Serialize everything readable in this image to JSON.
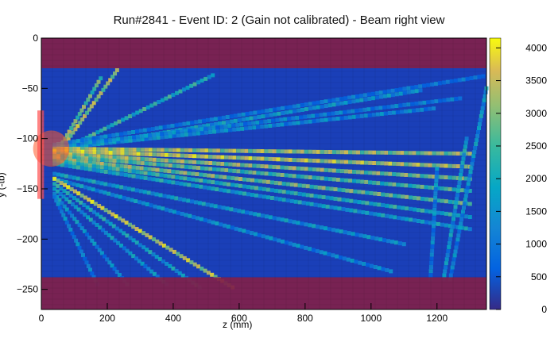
{
  "window": {
    "title": "Run#2841 - Event ID: 2 (Gain not calibrated) - Beam right view"
  },
  "chart_data": {
    "type": "heatmap",
    "title": "Run#2841 - Event ID: 2 (Gain not calibrated) - Beam right view",
    "xlabel": "z (mm)",
    "ylabel": "y (-tb)",
    "xlim": [
      0,
      1350
    ],
    "ylim": [
      -270,
      0
    ],
    "x_ticks": [
      0,
      200,
      400,
      600,
      800,
      1000,
      1200
    ],
    "y_ticks": [
      0,
      -50,
      -100,
      -150,
      -200,
      -250
    ],
    "colorbar": {
      "range": [
        0,
        4150
      ],
      "ticks": [
        0,
        500,
        1000,
        1500,
        2000,
        2500,
        3000,
        3500,
        4000
      ],
      "colormap": "parula"
    },
    "masked_regions": [
      {
        "y_range": [
          -30,
          0
        ],
        "x_range": [
          0,
          1350
        ],
        "color": "#80204a"
      },
      {
        "y_range": [
          -270,
          -238
        ],
        "x_range": [
          0,
          1350
        ],
        "color": "#80204a"
      }
    ],
    "beam_spot": {
      "center": [
        30,
        -110
      ],
      "radius": 55,
      "color": "#ff5a2a"
    },
    "beam_bar": {
      "x_range": [
        -12,
        8
      ],
      "y_range": [
        -160,
        -72
      ],
      "color": "#ff5050"
    },
    "tracks": [
      {
        "from": [
          40,
          -120
        ],
        "to": [
          230,
          -32
        ],
        "intensity": 0.85
      },
      {
        "from": [
          40,
          -118
        ],
        "to": [
          180,
          -40
        ],
        "intensity": 0.75
      },
      {
        "from": [
          40,
          -115
        ],
        "to": [
          520,
          -37
        ],
        "intensity": 0.6
      },
      {
        "from": [
          40,
          -112
        ],
        "to": [
          1150,
          -52
        ],
        "intensity": 0.45
      },
      {
        "from": [
          40,
          -110
        ],
        "to": [
          1190,
          -70
        ],
        "intensity": 0.4
      },
      {
        "from": [
          40,
          -108
        ],
        "to": [
          1270,
          -60
        ],
        "intensity": 0.35
      },
      {
        "from": [
          40,
          -106
        ],
        "to": [
          1340,
          -38
        ],
        "intensity": 0.3
      },
      {
        "from": [
          40,
          -110
        ],
        "to": [
          1300,
          -115
        ],
        "intensity": 0.85
      },
      {
        "from": [
          40,
          -112
        ],
        "to": [
          1300,
          -128
        ],
        "intensity": 0.9
      },
      {
        "from": [
          40,
          -115
        ],
        "to": [
          1300,
          -140
        ],
        "intensity": 0.8
      },
      {
        "from": [
          40,
          -117
        ],
        "to": [
          1300,
          -152
        ],
        "intensity": 0.7
      },
      {
        "from": [
          40,
          -120
        ],
        "to": [
          1300,
          -165
        ],
        "intensity": 0.75
      },
      {
        "from": [
          40,
          -122
        ],
        "to": [
          1300,
          -178
        ],
        "intensity": 0.6
      },
      {
        "from": [
          40,
          -125
        ],
        "to": [
          1300,
          -190
        ],
        "intensity": 0.5
      },
      {
        "from": [
          40,
          -135
        ],
        "to": [
          1100,
          -205
        ],
        "intensity": 0.45
      },
      {
        "from": [
          40,
          -140
        ],
        "to": [
          1060,
          -232
        ],
        "intensity": 0.4
      },
      {
        "from": [
          40,
          -140
        ],
        "to": [
          580,
          -248
        ],
        "intensity": 0.9
      },
      {
        "from": [
          40,
          -145
        ],
        "to": [
          480,
          -248
        ],
        "intensity": 0.5
      },
      {
        "from": [
          40,
          -150
        ],
        "to": [
          380,
          -245
        ],
        "intensity": 0.45
      },
      {
        "from": [
          40,
          -155
        ],
        "to": [
          260,
          -245
        ],
        "intensity": 0.4
      },
      {
        "from": [
          40,
          -158
        ],
        "to": [
          170,
          -245
        ],
        "intensity": 0.35
      },
      {
        "from": [
          1290,
          -100
        ],
        "to": [
          1220,
          -240
        ],
        "intensity": 0.45
      },
      {
        "from": [
          1350,
          -50
        ],
        "to": [
          1240,
          -240
        ],
        "intensity": 0.4
      },
      {
        "from": [
          1200,
          -130
        ],
        "to": [
          1180,
          -240
        ],
        "intensity": 0.35
      }
    ]
  }
}
